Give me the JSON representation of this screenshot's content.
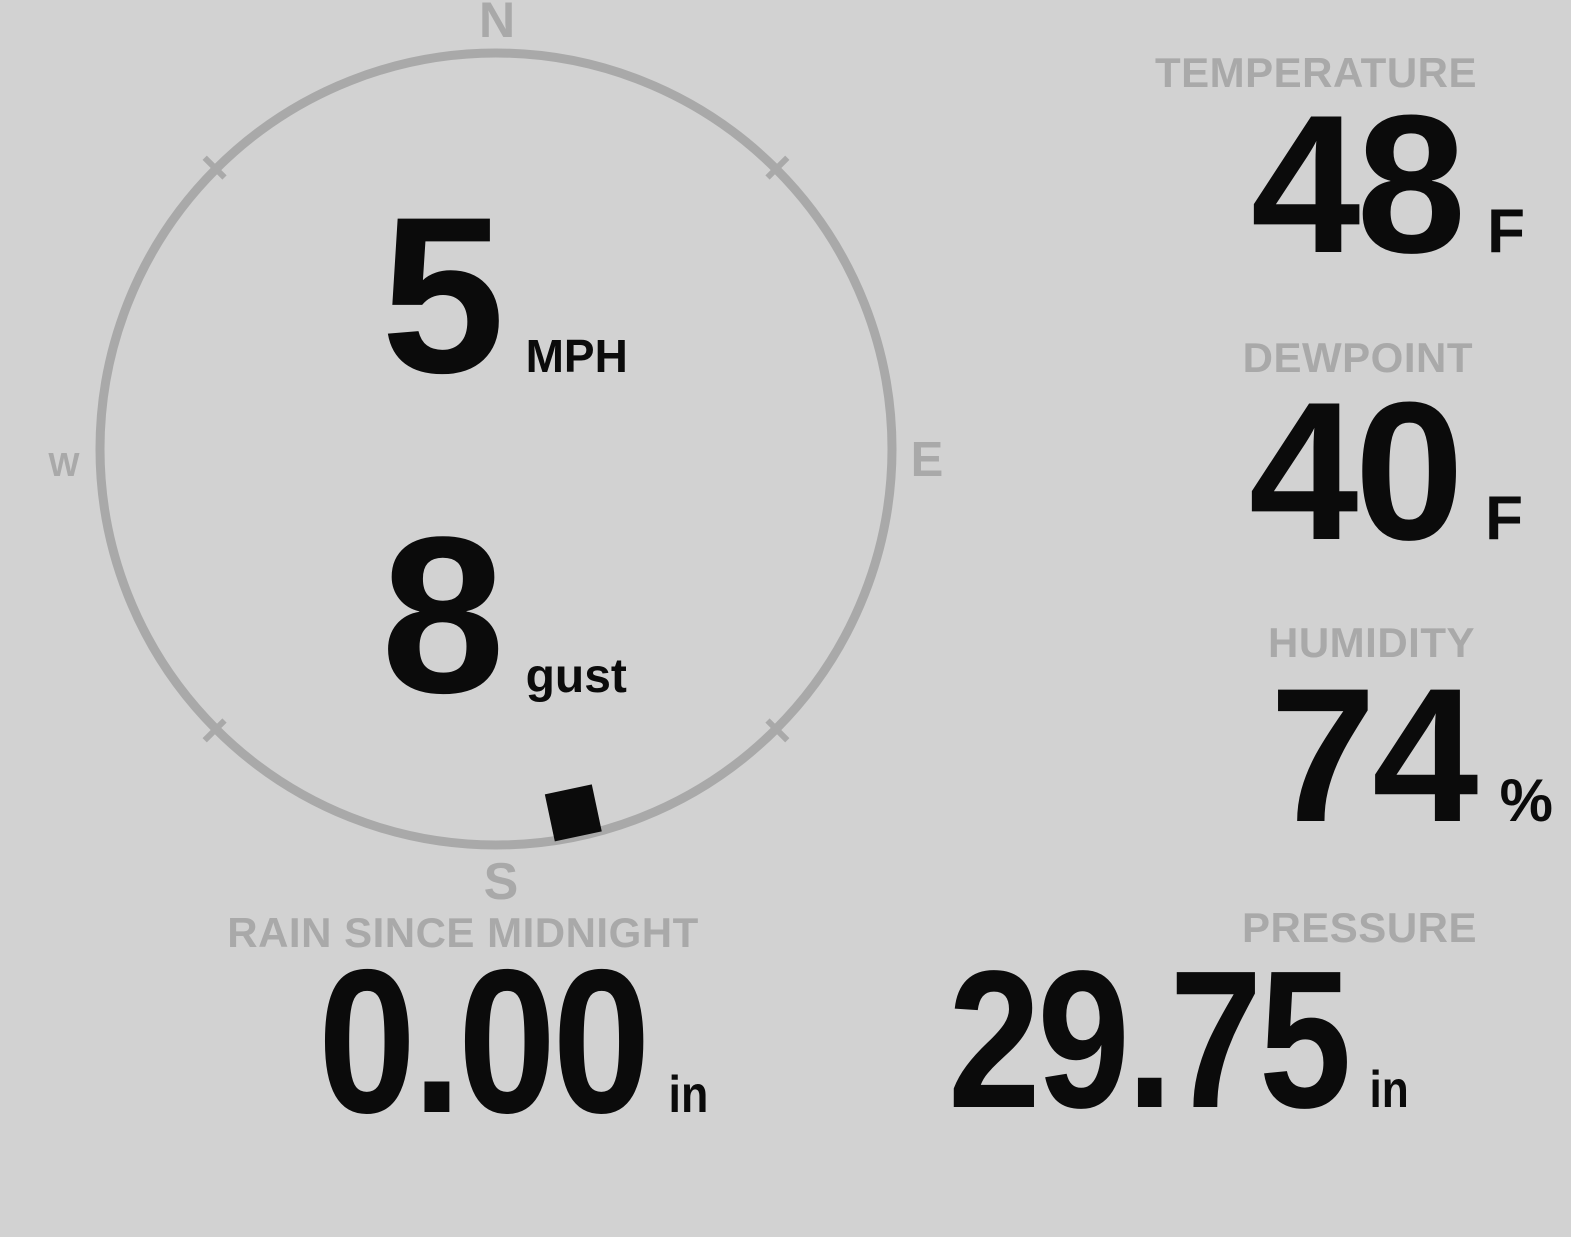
{
  "colors": {
    "background": "#d2d2d2",
    "muted_gray": "#a9a9a9",
    "ink": "#0b0b0b"
  },
  "compass": {
    "cardinals": {
      "north": "N",
      "east": "E",
      "south": "S",
      "west": "W"
    },
    "wind_direction_deg": 168,
    "speed": {
      "value": "5",
      "unit": "MPH"
    },
    "gust": {
      "value": "8",
      "unit": "gust"
    }
  },
  "metrics": {
    "temperature": {
      "label": "TEMPERATURE",
      "value": "48",
      "unit": "F"
    },
    "dewpoint": {
      "label": "DEWPOINT",
      "value": "40",
      "unit": "F"
    },
    "humidity": {
      "label": "HUMIDITY",
      "value": "74",
      "unit": "%"
    },
    "rain": {
      "label": "RAIN SINCE MIDNIGHT",
      "value": "0.00",
      "unit": "in"
    },
    "pressure": {
      "label": "PRESSURE",
      "value": "29.75",
      "unit": "in"
    }
  }
}
